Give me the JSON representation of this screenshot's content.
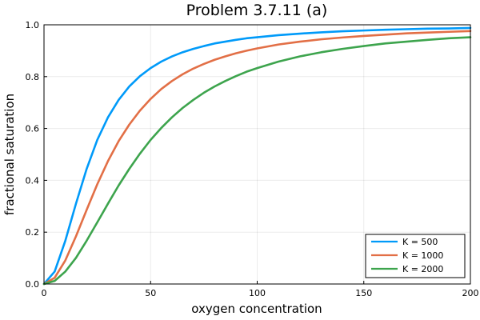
{
  "chart_data": {
    "type": "line",
    "title": "Problem 3.7.11 (a)",
    "xlabel": "oxygen concentration",
    "ylabel": "fractional saturation",
    "xlim": [
      0,
      200
    ],
    "ylim": [
      0,
      1.0
    ],
    "xticks": [
      0,
      50,
      100,
      150,
      200
    ],
    "xtick_labels": [
      "0",
      "50",
      "100",
      "150",
      "200"
    ],
    "yticks": [
      0,
      0.2,
      0.4,
      0.6,
      0.8,
      1.0
    ],
    "ytick_labels": [
      "0.0",
      "0.2",
      "0.4",
      "0.6",
      "0.8",
      "1.0"
    ],
    "grid": true,
    "legend_position": "bottom-right",
    "x": [
      0,
      5,
      10,
      15,
      20,
      25,
      30,
      35,
      40,
      45,
      50,
      55,
      60,
      65,
      70,
      75,
      80,
      85,
      90,
      95,
      100,
      110,
      120,
      130,
      140,
      150,
      160,
      170,
      180,
      190,
      200
    ],
    "series": [
      {
        "name": "K = 500",
        "color": "#009af9",
        "values": [
          0.0,
          0.048,
          0.167,
          0.31,
          0.444,
          0.556,
          0.643,
          0.71,
          0.762,
          0.802,
          0.833,
          0.858,
          0.878,
          0.894,
          0.907,
          0.918,
          0.928,
          0.935,
          0.942,
          0.948,
          0.952,
          0.96,
          0.966,
          0.971,
          0.975,
          0.978,
          0.981,
          0.983,
          0.985,
          0.986,
          0.988
        ]
      },
      {
        "name": "K = 1000",
        "color": "#e26f46",
        "values": [
          0.0,
          0.024,
          0.091,
          0.184,
          0.286,
          0.385,
          0.474,
          0.551,
          0.615,
          0.669,
          0.714,
          0.752,
          0.783,
          0.809,
          0.831,
          0.849,
          0.865,
          0.878,
          0.89,
          0.9,
          0.909,
          0.924,
          0.935,
          0.944,
          0.951,
          0.957,
          0.962,
          0.967,
          0.97,
          0.973,
          0.976
        ]
      },
      {
        "name": "K = 2000",
        "color": "#3da44d",
        "values": [
          0.0,
          0.012,
          0.048,
          0.101,
          0.167,
          0.238,
          0.31,
          0.38,
          0.444,
          0.503,
          0.556,
          0.602,
          0.643,
          0.679,
          0.71,
          0.738,
          0.762,
          0.783,
          0.802,
          0.819,
          0.833,
          0.858,
          0.878,
          0.894,
          0.907,
          0.918,
          0.928,
          0.935,
          0.942,
          0.948,
          0.952
        ]
      }
    ]
  }
}
